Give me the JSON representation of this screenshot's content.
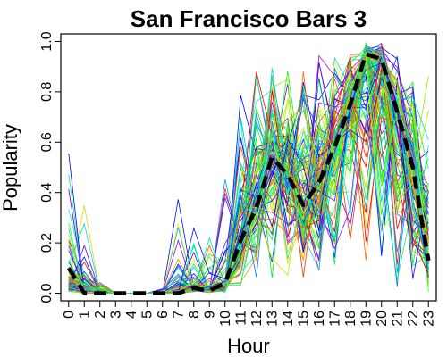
{
  "chart_data": {
    "type": "line",
    "title": "San Francisco Bars 3",
    "xlabel": "Hour",
    "ylabel": "Popularity",
    "x": [
      0,
      1,
      2,
      3,
      4,
      5,
      6,
      7,
      8,
      9,
      10,
      11,
      12,
      13,
      14,
      15,
      16,
      17,
      18,
      19,
      20,
      21,
      22,
      23
    ],
    "x_tick_labels": [
      "0",
      "1",
      "2",
      "3",
      "4",
      "5",
      "6",
      "7",
      "8",
      "9",
      "10",
      "11",
      "12",
      "13",
      "14",
      "15",
      "16",
      "17",
      "18",
      "19",
      "20",
      "21",
      "22",
      "23"
    ],
    "y_ticks": [
      0.0,
      0.2,
      0.4,
      0.6,
      0.8,
      1.0
    ],
    "y_tick_labels": [
      "0.0",
      "0.2",
      "0.4",
      "0.6",
      "0.8",
      "1.0"
    ],
    "xlim": [
      -0.5,
      23.5
    ],
    "ylim": [
      -0.03,
      1.03
    ],
    "grid": false,
    "legend": "none",
    "mean_series": {
      "color": "#000000",
      "line_style": "dashed",
      "values": [
        0.1,
        0.0,
        0.0,
        0.0,
        0.0,
        0.0,
        0.0,
        0.0,
        0.02,
        0.01,
        0.04,
        0.21,
        0.34,
        0.54,
        0.47,
        0.35,
        0.44,
        0.58,
        0.75,
        0.95,
        0.93,
        0.72,
        0.5,
        0.13
      ]
    },
    "series_summary": {
      "count_estimate": 120,
      "color_map": "rainbow",
      "mean": [
        0.1,
        0.0,
        0.0,
        0.0,
        0.0,
        0.0,
        0.0,
        0.0,
        0.02,
        0.01,
        0.04,
        0.21,
        0.34,
        0.54,
        0.47,
        0.35,
        0.44,
        0.58,
        0.75,
        0.95,
        0.93,
        0.72,
        0.5,
        0.13
      ],
      "min": [
        0.0,
        0.0,
        0.0,
        0.0,
        0.0,
        0.0,
        0.0,
        0.0,
        0.0,
        0.0,
        0.0,
        0.0,
        0.0,
        0.0,
        0.0,
        0.0,
        0.0,
        0.0,
        0.2,
        0.0,
        0.0,
        0.0,
        0.0,
        0.0
      ],
      "max": [
        0.68,
        0.55,
        0.05,
        0.0,
        0.0,
        0.0,
        0.02,
        0.49,
        0.3,
        0.35,
        0.55,
        0.85,
        1.0,
        0.98,
        0.95,
        0.97,
        0.98,
        1.0,
        1.0,
        1.0,
        1.0,
        0.99,
        0.95,
        0.92
      ]
    }
  }
}
